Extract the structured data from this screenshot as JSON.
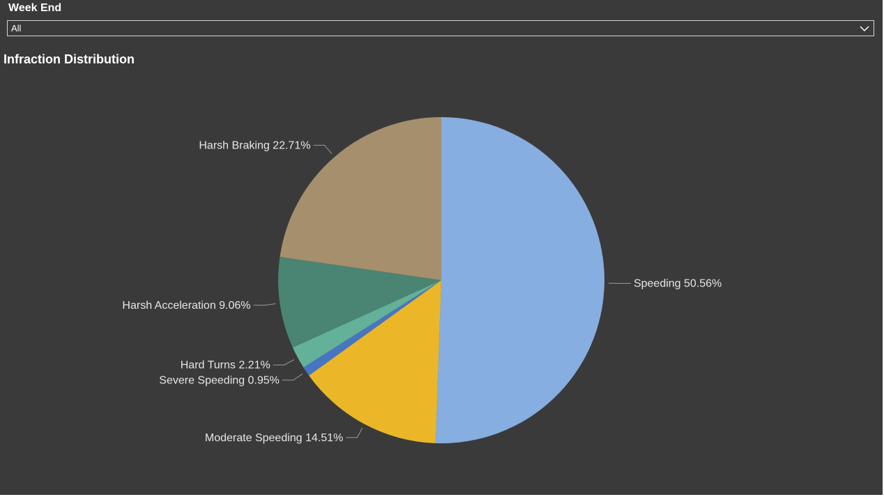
{
  "filter": {
    "label": "Week End",
    "selected": "All"
  },
  "chart_title": "Infraction Distribution",
  "chart_data": {
    "type": "pie",
    "title": "Infraction Distribution",
    "slices": [
      {
        "name": "Speeding",
        "value": 50.56,
        "label": "Speeding 50.56%",
        "color": "#86AEE0"
      },
      {
        "name": "Moderate Speeding",
        "value": 14.51,
        "label": "Moderate Speeding 14.51%",
        "color": "#EBB729"
      },
      {
        "name": "Severe Speeding",
        "value": 0.95,
        "label": "Severe Speeding 0.95%",
        "color": "#4775C2"
      },
      {
        "name": "Hard Turns",
        "value": 2.21,
        "label": "Hard Turns 2.21%",
        "color": "#62B198"
      },
      {
        "name": "Harsh Acceleration",
        "value": 9.06,
        "label": "Harsh Acceleration 9.06%",
        "color": "#4A8473"
      },
      {
        "name": "Harsh Braking",
        "value": 22.71,
        "label": "Harsh Braking 22.71%",
        "color": "#A58F6D"
      }
    ],
    "start_angle": "top",
    "direction": "clockwise",
    "legend": "none"
  }
}
